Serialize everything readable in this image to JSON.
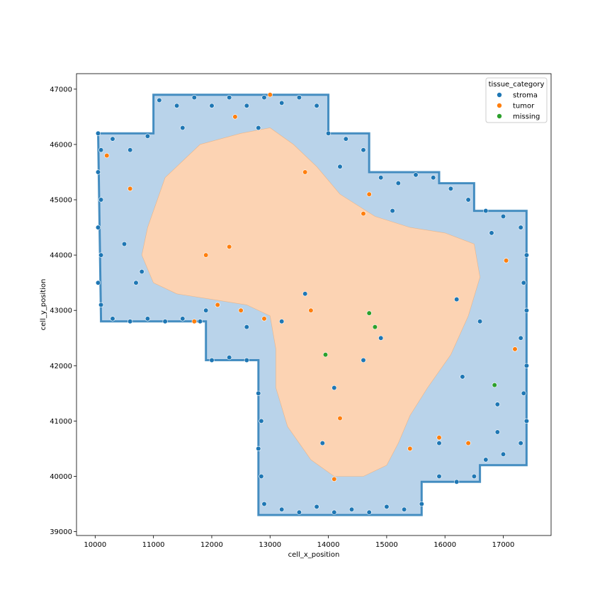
{
  "chart_data": {
    "type": "scatter",
    "xlabel": "cell_x_position",
    "ylabel": "cell_y_position",
    "xlim": [
      9680,
      17820
    ],
    "ylim": [
      38930,
      47280
    ],
    "xticks": [
      10000,
      11000,
      12000,
      13000,
      14000,
      15000,
      16000,
      17000
    ],
    "yticks": [
      39000,
      40000,
      41000,
      42000,
      43000,
      44000,
      45000,
      46000,
      47000
    ],
    "grid": false,
    "legend": {
      "title": "tissue_category",
      "placement": "top-right",
      "entries": [
        "stroma",
        "tumor",
        "missing"
      ]
    },
    "series": [
      {
        "name": "stroma",
        "color": "#1f77b4",
        "region_outline": [
          [
            10050,
            46200
          ],
          [
            11000,
            46200
          ],
          [
            11000,
            46900
          ],
          [
            13000,
            46900
          ],
          [
            13000,
            46900
          ],
          [
            14000,
            46900
          ],
          [
            14000,
            46200
          ],
          [
            14700,
            46200
          ],
          [
            14700,
            45500
          ],
          [
            15900,
            45500
          ],
          [
            15900,
            45300
          ],
          [
            16500,
            45300
          ],
          [
            16500,
            44800
          ],
          [
            17400,
            44800
          ],
          [
            17400,
            40200
          ],
          [
            16600,
            40200
          ],
          [
            16600,
            39900
          ],
          [
            15600,
            39900
          ],
          [
            15600,
            39300
          ],
          [
            12800,
            39300
          ],
          [
            12800,
            42100
          ],
          [
            11900,
            42100
          ],
          [
            11900,
            42800
          ],
          [
            10100,
            42800
          ]
        ],
        "points": [
          [
            10050,
            46200
          ],
          [
            10300,
            46100
          ],
          [
            10600,
            45900
          ],
          [
            10900,
            46150
          ],
          [
            11100,
            46800
          ],
          [
            11400,
            46700
          ],
          [
            11700,
            46850
          ],
          [
            12000,
            46700
          ],
          [
            12300,
            46850
          ],
          [
            12600,
            46700
          ],
          [
            12900,
            46850
          ],
          [
            13200,
            46750
          ],
          [
            13500,
            46850
          ],
          [
            13800,
            46700
          ],
          [
            14000,
            46200
          ],
          [
            14300,
            46100
          ],
          [
            14600,
            45900
          ],
          [
            14900,
            45400
          ],
          [
            15200,
            45300
          ],
          [
            15500,
            45450
          ],
          [
            15800,
            45400
          ],
          [
            16100,
            45200
          ],
          [
            16400,
            45000
          ],
          [
            16700,
            44800
          ],
          [
            17000,
            44700
          ],
          [
            17300,
            44500
          ],
          [
            17400,
            44000
          ],
          [
            17350,
            43500
          ],
          [
            17400,
            43000
          ],
          [
            17300,
            42500
          ],
          [
            17400,
            42000
          ],
          [
            17350,
            41500
          ],
          [
            17400,
            41000
          ],
          [
            17300,
            40600
          ],
          [
            17000,
            40400
          ],
          [
            16700,
            40300
          ],
          [
            16500,
            40000
          ],
          [
            16200,
            39900
          ],
          [
            15900,
            40000
          ],
          [
            15600,
            39500
          ],
          [
            15300,
            39400
          ],
          [
            15000,
            39450
          ],
          [
            14700,
            39350
          ],
          [
            14400,
            39400
          ],
          [
            14100,
            39350
          ],
          [
            13800,
            39450
          ],
          [
            13500,
            39350
          ],
          [
            13200,
            39400
          ],
          [
            12900,
            39500
          ],
          [
            12850,
            40000
          ],
          [
            12800,
            40500
          ],
          [
            12850,
            41000
          ],
          [
            12800,
            41500
          ],
          [
            12600,
            42100
          ],
          [
            12300,
            42150
          ],
          [
            12000,
            42100
          ],
          [
            11800,
            42800
          ],
          [
            11500,
            42850
          ],
          [
            11200,
            42800
          ],
          [
            10900,
            42850
          ],
          [
            10600,
            42800
          ],
          [
            10300,
            42850
          ],
          [
            10100,
            43100
          ],
          [
            10050,
            43500
          ],
          [
            10100,
            44000
          ],
          [
            10050,
            44500
          ],
          [
            10100,
            45000
          ],
          [
            10050,
            45500
          ],
          [
            10100,
            45900
          ],
          [
            10700,
            43500
          ],
          [
            10500,
            44200
          ],
          [
            16300,
            41800
          ],
          [
            16600,
            42800
          ],
          [
            16900,
            41300
          ],
          [
            16200,
            43200
          ],
          [
            14900,
            42500
          ],
          [
            14600,
            42100
          ],
          [
            15100,
            44800
          ],
          [
            14200,
            45600
          ],
          [
            12800,
            46300
          ],
          [
            11500,
            46300
          ],
          [
            13600,
            43300
          ],
          [
            16900,
            40800
          ],
          [
            13200,
            42800
          ],
          [
            12600,
            42700
          ],
          [
            11900,
            43000
          ],
          [
            10800,
            43700
          ],
          [
            17200,
            42300
          ],
          [
            14100,
            41600
          ],
          [
            13900,
            40600
          ],
          [
            15900,
            40600
          ],
          [
            16800,
            44400
          ]
        ]
      },
      {
        "name": "tumor",
        "color": "#ff7f0e",
        "region_outline": [
          [
            10900,
            44500
          ],
          [
            11200,
            45400
          ],
          [
            11800,
            46000
          ],
          [
            12500,
            46200
          ],
          [
            13000,
            46300
          ],
          [
            13400,
            46000
          ],
          [
            13800,
            45600
          ],
          [
            14200,
            45100
          ],
          [
            14800,
            44700
          ],
          [
            15400,
            44500
          ],
          [
            16000,
            44400
          ],
          [
            16500,
            44200
          ],
          [
            16600,
            43600
          ],
          [
            16400,
            42900
          ],
          [
            16100,
            42200
          ],
          [
            15700,
            41600
          ],
          [
            15400,
            41100
          ],
          [
            15200,
            40600
          ],
          [
            15000,
            40200
          ],
          [
            14600,
            40000
          ],
          [
            14100,
            40000
          ],
          [
            13700,
            40300
          ],
          [
            13300,
            40900
          ],
          [
            13100,
            41600
          ],
          [
            13100,
            42300
          ],
          [
            13000,
            42900
          ],
          [
            12600,
            43100
          ],
          [
            12000,
            43200
          ],
          [
            11400,
            43300
          ],
          [
            11000,
            43500
          ],
          [
            10800,
            44000
          ]
        ],
        "points": [
          [
            10600,
            45200
          ],
          [
            10200,
            45800
          ],
          [
            11900,
            44000
          ],
          [
            12300,
            44150
          ],
          [
            12100,
            43100
          ],
          [
            12500,
            43000
          ],
          [
            13000,
            46900
          ],
          [
            12400,
            46500
          ],
          [
            13600,
            45500
          ],
          [
            14700,
            45100
          ],
          [
            14600,
            44750
          ],
          [
            17200,
            42300
          ],
          [
            17050,
            43900
          ],
          [
            16400,
            40600
          ],
          [
            15900,
            40700
          ],
          [
            15400,
            40500
          ],
          [
            14200,
            41050
          ],
          [
            14100,
            39950
          ],
          [
            11700,
            42800
          ],
          [
            12900,
            42850
          ],
          [
            13700,
            43000
          ]
        ]
      },
      {
        "name": "missing",
        "color": "#2ca02c",
        "points": [
          [
            14700,
            42950
          ],
          [
            14800,
            42700
          ],
          [
            13950,
            42200
          ],
          [
            16850,
            41650
          ]
        ]
      }
    ]
  }
}
